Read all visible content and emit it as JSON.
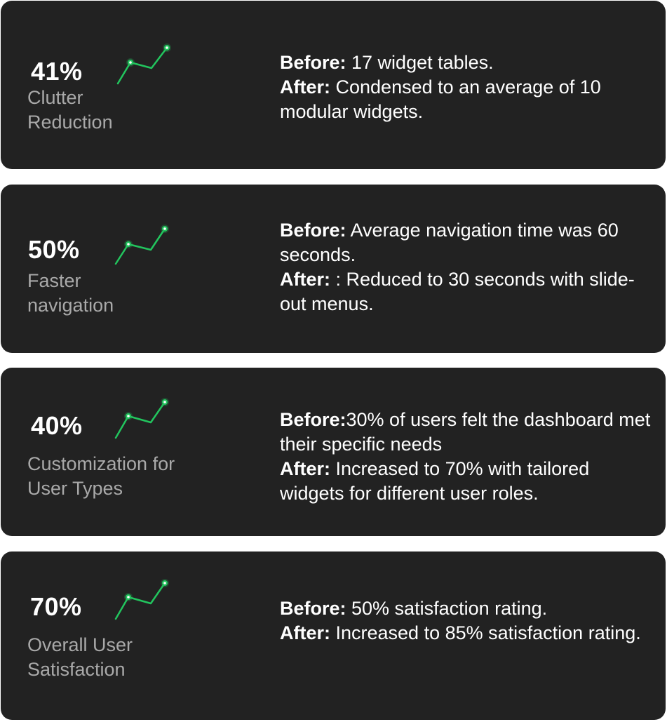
{
  "accent_color": "#22c55e",
  "cards": [
    {
      "value": "41%",
      "label_line1": "Clutter",
      "label_line2": "Reduction",
      "trend_icon": "trend-up-icon",
      "before_label": "Before:",
      "before_text": " 17 widget tables.",
      "after_label": "After:",
      "after_text": " Condensed to an average of 10 modular widgets."
    },
    {
      "value": "50%",
      "label_line1": "Faster",
      "label_line2": "navigation",
      "trend_icon": "trend-up-icon",
      "before_label": "Before:",
      "before_text": " Average navigation time was 60 seconds.",
      "after_label": "After:",
      "after_text": " : Reduced to 30 seconds with slide-out menus."
    },
    {
      "value": "40%",
      "label_line1": "Customization for",
      "label_line2": "User Types",
      "trend_icon": "trend-up-icon",
      "before_label": "Before:",
      "before_text": "30% of users felt the dashboard met their specific needs",
      "after_label": "After:",
      "after_text": "  Increased to 70% with tailored widgets for different user roles."
    },
    {
      "value": "70%",
      "label_line1": "Overall User",
      "label_line2": "Satisfaction",
      "trend_icon": "trend-up-icon",
      "before_label": "Before:",
      "before_text": " 50% satisfaction rating.",
      "after_label": "After:",
      "after_text": " Increased to 85% satisfaction rating."
    }
  ]
}
